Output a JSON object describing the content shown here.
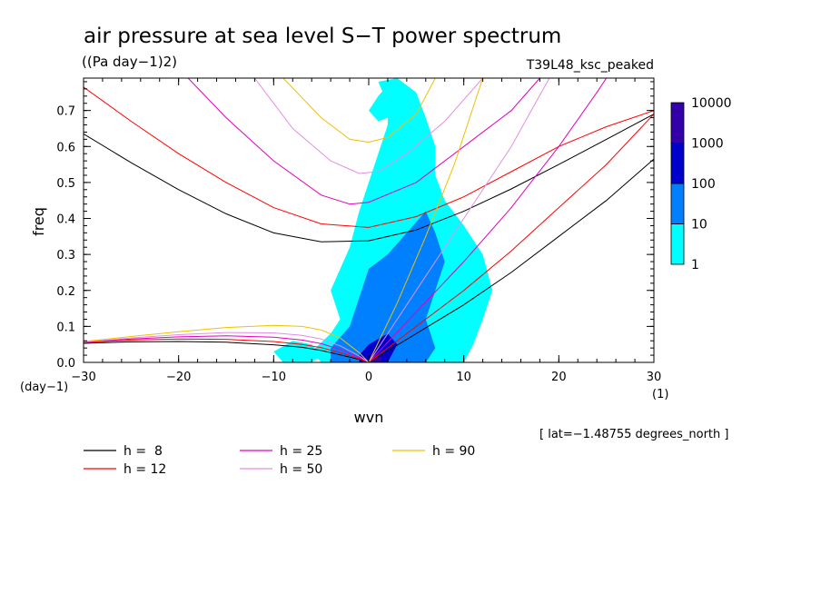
{
  "chart_data": {
    "type": "heatmap",
    "title": "air pressure at sea level S−T power spectrum",
    "units": "((Pa day−1)2)",
    "run_label": "T39L48_ksc_peaked",
    "xlabel": "wvn",
    "ylabel": "freq",
    "x_unit": "(1)",
    "y_unit": "(day−1)",
    "annotation": "[ lat=−1.48755 degrees_north ]",
    "xlim": [
      -30,
      30
    ],
    "ylim": [
      0,
      0.79
    ],
    "x_ticks": [
      -30,
      -20,
      -10,
      0,
      10,
      20,
      30
    ],
    "x_tick_labels": [
      "−30",
      "−20",
      "−10",
      "0",
      "10",
      "20",
      "30"
    ],
    "y_ticks": [
      0.0,
      0.1,
      0.2,
      0.3,
      0.4,
      0.5,
      0.6,
      0.7
    ],
    "y_tick_labels": [
      "0.0",
      "0.1",
      "0.2",
      "0.3",
      "0.4",
      "0.5",
      "0.6",
      "0.7"
    ],
    "colorbar": {
      "scale": "log",
      "levels": [
        "1",
        "10",
        "100",
        "1000",
        "10000"
      ],
      "colors": [
        "#00FFFF",
        "#0080FF",
        "#0000CC",
        "#3300AA"
      ]
    },
    "contour_regions": [
      {
        "level_index": 0,
        "poly": [
          [
            -5,
            0
          ],
          [
            -6,
            0.03
          ],
          [
            -4,
            0.08
          ],
          [
            -3,
            0.12
          ],
          [
            -4,
            0.2
          ],
          [
            -2,
            0.32
          ],
          [
            -1,
            0.42
          ],
          [
            0,
            0.5
          ],
          [
            1,
            0.58
          ],
          [
            2,
            0.66
          ],
          [
            2,
            0.72
          ],
          [
            1,
            0.78
          ],
          [
            3,
            0.79
          ],
          [
            5,
            0.75
          ],
          [
            6,
            0.68
          ],
          [
            7,
            0.6
          ],
          [
            7,
            0.52
          ],
          [
            8,
            0.45
          ],
          [
            10,
            0.38
          ],
          [
            12,
            0.3
          ],
          [
            13,
            0.2
          ],
          [
            12,
            0.12
          ],
          [
            11,
            0.05
          ],
          [
            10,
            0
          ]
        ]
      },
      {
        "level_index": 0,
        "poly": [
          [
            -9,
            0
          ],
          [
            -10,
            0.03
          ],
          [
            -8,
            0.06
          ],
          [
            -6,
            0.05
          ],
          [
            -5,
            0.02
          ],
          [
            -6,
            0
          ]
        ]
      },
      {
        "level_index": 0,
        "poly": [
          [
            0,
            0.7
          ],
          [
            1,
            0.74
          ],
          [
            2,
            0.77
          ],
          [
            3,
            0.72
          ],
          [
            2,
            0.68
          ],
          [
            1,
            0.67
          ]
        ]
      },
      {
        "level_index": 1,
        "poly": [
          [
            -4,
            0
          ],
          [
            -4,
            0.04
          ],
          [
            -2,
            0.1
          ],
          [
            -1,
            0.18
          ],
          [
            0,
            0.26
          ],
          [
            2,
            0.3
          ],
          [
            4,
            0.36
          ],
          [
            6,
            0.42
          ],
          [
            7,
            0.36
          ],
          [
            8,
            0.28
          ],
          [
            7,
            0.2
          ],
          [
            6,
            0.12
          ],
          [
            7,
            0.04
          ],
          [
            6,
            0
          ]
        ]
      },
      {
        "level_index": 2,
        "poly": [
          [
            -1,
            0
          ],
          [
            -1,
            0.02
          ],
          [
            0,
            0.05
          ],
          [
            2,
            0.08
          ],
          [
            3,
            0.05
          ],
          [
            2,
            0
          ]
        ]
      },
      {
        "level_index": 3,
        "poly": [
          [
            0,
            0
          ],
          [
            0,
            0.01
          ],
          [
            1,
            0.02
          ],
          [
            1.5,
            0.01
          ],
          [
            1,
            0
          ]
        ]
      }
    ],
    "series": [
      {
        "name": "h =  8",
        "color": "#000000",
        "values": [
          [
            [
              -30,
              0.053
            ],
            [
              -25,
              0.057
            ],
            [
              -20,
              0.058
            ],
            [
              -15,
              0.056
            ],
            [
              -10,
              0.049
            ],
            [
              -7,
              0.042
            ],
            [
              -5,
              0.033
            ],
            [
              -3,
              0.021
            ],
            [
              -1,
              0.008
            ],
            [
              0,
              0
            ]
          ],
          [
            [
              -30,
              0.635
            ],
            [
              -25,
              0.555
            ],
            [
              -20,
              0.48
            ],
            [
              -15,
              0.413
            ],
            [
              -10,
              0.36
            ],
            [
              -5,
              0.335
            ],
            [
              0,
              0.338
            ],
            [
              5,
              0.368
            ],
            [
              10,
              0.42
            ],
            [
              15,
              0.482
            ],
            [
              20,
              0.55
            ],
            [
              25,
              0.62
            ],
            [
              30,
              0.69
            ]
          ],
          [
            [
              0,
              0
            ],
            [
              5,
              0.08
            ],
            [
              10,
              0.16
            ],
            [
              15,
              0.25
            ],
            [
              20,
              0.35
            ],
            [
              25,
              0.45
            ],
            [
              30,
              0.565
            ]
          ]
        ]
      },
      {
        "name": "h = 12",
        "color": "#FF0000",
        "values": [
          [
            [
              -30,
              0.055
            ],
            [
              -25,
              0.062
            ],
            [
              -20,
              0.065
            ],
            [
              -15,
              0.064
            ],
            [
              -10,
              0.058
            ],
            [
              -7,
              0.05
            ],
            [
              -5,
              0.041
            ],
            [
              -3,
              0.027
            ],
            [
              -1,
              0.01
            ],
            [
              0,
              0
            ]
          ],
          [
            [
              -30,
              0.765
            ],
            [
              -25,
              0.67
            ],
            [
              -20,
              0.58
            ],
            [
              -15,
              0.5
            ],
            [
              -10,
              0.43
            ],
            [
              -5,
              0.385
            ],
            [
              0,
              0.375
            ],
            [
              5,
              0.405
            ],
            [
              10,
              0.46
            ],
            [
              15,
              0.53
            ],
            [
              20,
              0.6
            ],
            [
              25,
              0.655
            ],
            [
              30,
              0.7
            ]
          ],
          [
            [
              0,
              0
            ],
            [
              5,
              0.1
            ],
            [
              10,
              0.2
            ],
            [
              15,
              0.31
            ],
            [
              20,
              0.43
            ],
            [
              25,
              0.55
            ],
            [
              30,
              0.69
            ]
          ]
        ]
      },
      {
        "name": "h = 25",
        "color": "#E000C0",
        "values": [
          [
            [
              -30,
              0.056
            ],
            [
              -25,
              0.065
            ],
            [
              -20,
              0.071
            ],
            [
              -15,
              0.074
            ],
            [
              -10,
              0.07
            ],
            [
              -7,
              0.062
            ],
            [
              -5,
              0.052
            ],
            [
              -3,
              0.036
            ],
            [
              -1,
              0.014
            ],
            [
              0,
              0
            ]
          ],
          [
            [
              -19,
              0.79
            ],
            [
              -15,
              0.68
            ],
            [
              -10,
              0.56
            ],
            [
              -5,
              0.465
            ],
            [
              -2,
              0.44
            ],
            [
              0,
              0.445
            ],
            [
              5,
              0.5
            ],
            [
              10,
              0.6
            ],
            [
              15,
              0.7
            ],
            [
              18,
              0.79
            ]
          ],
          [
            [
              0,
              0
            ],
            [
              5,
              0.14
            ],
            [
              10,
              0.28
            ],
            [
              15,
              0.43
            ],
            [
              20,
              0.6
            ],
            [
              24,
              0.75
            ],
            [
              25,
              0.79
            ]
          ]
        ]
      },
      {
        "name": "h = 50",
        "color": "#E090E0",
        "values": [
          [
            [
              -30,
              0.057
            ],
            [
              -25,
              0.068
            ],
            [
              -20,
              0.077
            ],
            [
              -15,
              0.083
            ],
            [
              -10,
              0.082
            ],
            [
              -7,
              0.075
            ],
            [
              -5,
              0.065
            ],
            [
              -3,
              0.046
            ],
            [
              -1,
              0.018
            ],
            [
              0,
              0
            ]
          ],
          [
            [
              -12,
              0.79
            ],
            [
              -8,
              0.65
            ],
            [
              -4,
              0.56
            ],
            [
              -1,
              0.525
            ],
            [
              1,
              0.53
            ],
            [
              4,
              0.58
            ],
            [
              8,
              0.67
            ],
            [
              12,
              0.79
            ]
          ],
          [
            [
              0,
              0
            ],
            [
              5,
              0.2
            ],
            [
              10,
              0.4
            ],
            [
              15,
              0.6
            ],
            [
              19,
              0.79
            ]
          ]
        ]
      },
      {
        "name": "h = 90",
        "color": "#F0C000",
        "values": [
          [
            [
              -30,
              0.058
            ],
            [
              -25,
              0.072
            ],
            [
              -20,
              0.085
            ],
            [
              -15,
              0.097
            ],
            [
              -10,
              0.103
            ],
            [
              -7,
              0.1
            ],
            [
              -5,
              0.09
            ],
            [
              -3,
              0.068
            ],
            [
              -1,
              0.027
            ],
            [
              0,
              0
            ]
          ],
          [
            [
              -9,
              0.79
            ],
            [
              -5,
              0.68
            ],
            [
              -2,
              0.62
            ],
            [
              0,
              0.612
            ],
            [
              2,
              0.625
            ],
            [
              5,
              0.69
            ],
            [
              7,
              0.79
            ]
          ],
          [
            [
              0,
              0
            ],
            [
              3,
              0.165
            ],
            [
              6,
              0.35
            ],
            [
              9,
              0.55
            ],
            [
              12,
              0.79
            ]
          ]
        ]
      }
    ]
  }
}
